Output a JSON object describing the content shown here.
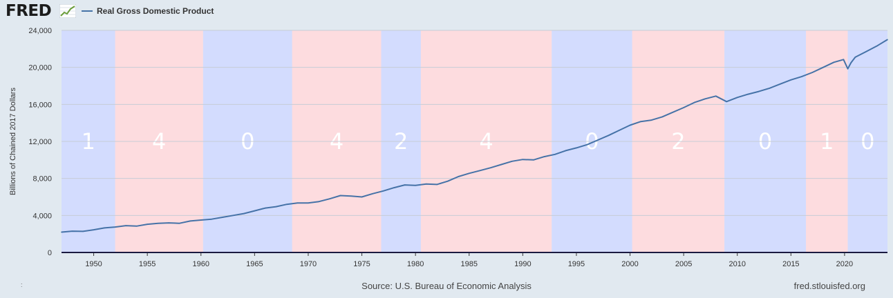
{
  "header": {
    "logo": "FRED",
    "legend_label": "Real Gross Domestic Product"
  },
  "footer": {
    "source": "Source: U.S. Bureau of Economic Analysis",
    "site": "fred.stlouisfed.org",
    "mark": ":"
  },
  "colors": {
    "line": "#4572a7",
    "band_blue": "#d3dcfe",
    "band_pink": "#fddcdf",
    "background": "#e1e9f0",
    "grid": "#c6cdd6",
    "axis": "#1a1a40"
  },
  "chart_data": {
    "type": "line",
    "title": "",
    "xlabel": "",
    "ylabel": "Billions of Chained 2017 Dollars",
    "xlim": [
      1947,
      2024
    ],
    "ylim": [
      0,
      24000
    ],
    "grid": true,
    "legend": "top-left",
    "x_ticks": [
      1950,
      1955,
      1960,
      1965,
      1970,
      1975,
      1980,
      1985,
      1990,
      1995,
      2000,
      2005,
      2010,
      2015,
      2020
    ],
    "y_ticks": [
      0,
      4000,
      8000,
      12000,
      16000,
      20000,
      24000
    ],
    "y_tick_labels": [
      "0",
      "4,000",
      "8,000",
      "12,000",
      "16,000",
      "20,000",
      "24,000"
    ],
    "series": [
      {
        "name": "Real Gross Domestic Product",
        "x": [
          1947,
          1948,
          1949,
          1950,
          1951,
          1952,
          1953,
          1954,
          1955,
          1956,
          1957,
          1958,
          1959,
          1960,
          1961,
          1962,
          1963,
          1964,
          1965,
          1966,
          1967,
          1968,
          1969,
          1970,
          1971,
          1972,
          1973,
          1974,
          1975,
          1976,
          1977,
          1978,
          1979,
          1980,
          1981,
          1982,
          1983,
          1984,
          1985,
          1986,
          1987,
          1988,
          1989,
          1990,
          1991,
          1992,
          1993,
          1994,
          1995,
          1996,
          1997,
          1998,
          1999,
          2000,
          2001,
          2002,
          2003,
          2004,
          2005,
          2006,
          2007,
          2008,
          2009,
          2010,
          2011,
          2012,
          2013,
          2014,
          2015,
          2016,
          2017,
          2018,
          2019,
          2019.9,
          2020.3,
          2020.6,
          2021,
          2022,
          2023,
          2024
        ],
        "values": [
          2200,
          2300,
          2280,
          2450,
          2650,
          2750,
          2900,
          2850,
          3050,
          3150,
          3200,
          3150,
          3400,
          3500,
          3600,
          3800,
          4000,
          4200,
          4500,
          4800,
          4950,
          5200,
          5350,
          5350,
          5500,
          5800,
          6150,
          6100,
          6000,
          6350,
          6650,
          7000,
          7300,
          7250,
          7400,
          7350,
          7700,
          8200,
          8550,
          8850,
          9150,
          9500,
          9850,
          10050,
          10000,
          10350,
          10600,
          11000,
          11300,
          11650,
          12150,
          12650,
          13200,
          13750,
          14150,
          14300,
          14650,
          15150,
          15650,
          16200,
          16600,
          16900,
          16300,
          16750,
          17100,
          17400,
          17750,
          18200,
          18650,
          19000,
          19450,
          20000,
          20550,
          20850,
          19850,
          20500,
          21100,
          21700,
          22300,
          23000
        ]
      }
    ],
    "bands": [
      {
        "start": 1947,
        "end": 1952,
        "label": "1",
        "color": "blue"
      },
      {
        "start": 1952,
        "end": 1960.2,
        "label": "4",
        "color": "pink"
      },
      {
        "start": 1960.2,
        "end": 1968.5,
        "label": "0",
        "color": "blue"
      },
      {
        "start": 1968.5,
        "end": 1976.8,
        "label": "4",
        "color": "pink"
      },
      {
        "start": 1976.8,
        "end": 1980.5,
        "label": "2",
        "color": "blue"
      },
      {
        "start": 1980.5,
        "end": 1992.7,
        "label": "4",
        "color": "pink"
      },
      {
        "start": 1992.7,
        "end": 2000.2,
        "label": "0",
        "color": "blue"
      },
      {
        "start": 2000.2,
        "end": 2008.8,
        "label": "2",
        "color": "pink"
      },
      {
        "start": 2008.8,
        "end": 2016.4,
        "label": "0",
        "color": "blue"
      },
      {
        "start": 2016.4,
        "end": 2020.3,
        "label": "1",
        "color": "pink"
      },
      {
        "start": 2020.3,
        "end": 2024,
        "label": "0",
        "color": "blue"
      }
    ]
  }
}
